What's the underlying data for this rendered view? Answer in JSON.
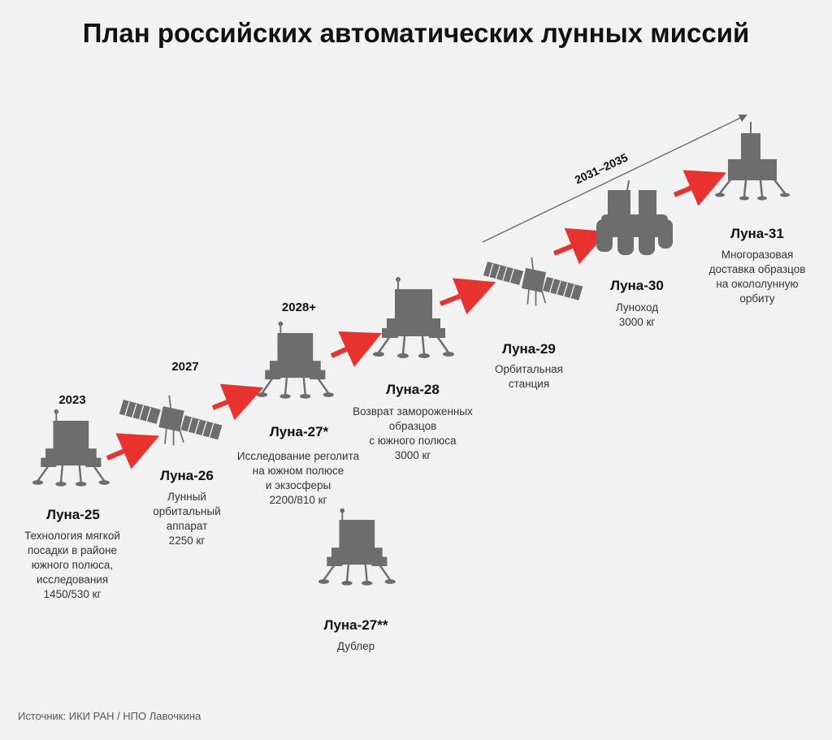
{
  "title": "План российских автоматических лунных миссий",
  "timeline_label": "2031–2035",
  "years": {
    "luna25": "2023",
    "luna26": "2027",
    "luna27": "2028+"
  },
  "missions": {
    "luna25": {
      "name": "Луна-25",
      "desc": [
        "Технология мягкой",
        "посадки в районе",
        "южного полюса,",
        "исследования",
        "1450/530 кг"
      ]
    },
    "luna26": {
      "name": "Луна-26",
      "desc": [
        "Лунный",
        "орбитальный",
        "аппарат",
        "2250 кг"
      ]
    },
    "luna27": {
      "name": "Луна-27*",
      "desc": [
        "Исследование реголита",
        "на южном полюсе",
        "и экзосферы",
        "2200/810 кг"
      ]
    },
    "luna27b": {
      "name": "Луна-27**",
      "desc": [
        "Дублер"
      ]
    },
    "luna28": {
      "name": "Луна-28",
      "desc": [
        "Возврат замороженных",
        "образцов",
        "с южного полюса",
        "3000 кг"
      ]
    },
    "luna29": {
      "name": "Луна-29",
      "desc": [
        "Орбитальная",
        "станция"
      ]
    },
    "luna30": {
      "name": "Луна-30",
      "desc": [
        "Луноход",
        "3000 кг"
      ]
    },
    "luna31": {
      "name": "Луна-31",
      "desc": [
        "Многоразовая",
        "доставка образцов",
        "на окололунную",
        "орбиту"
      ]
    }
  },
  "source": "Источник: ИКИ РАН / НПО Лавочкина",
  "colors": {
    "arrow": "#e8322e",
    "silhouette": "#6d6d6d",
    "background": "#f2f2f2"
  }
}
